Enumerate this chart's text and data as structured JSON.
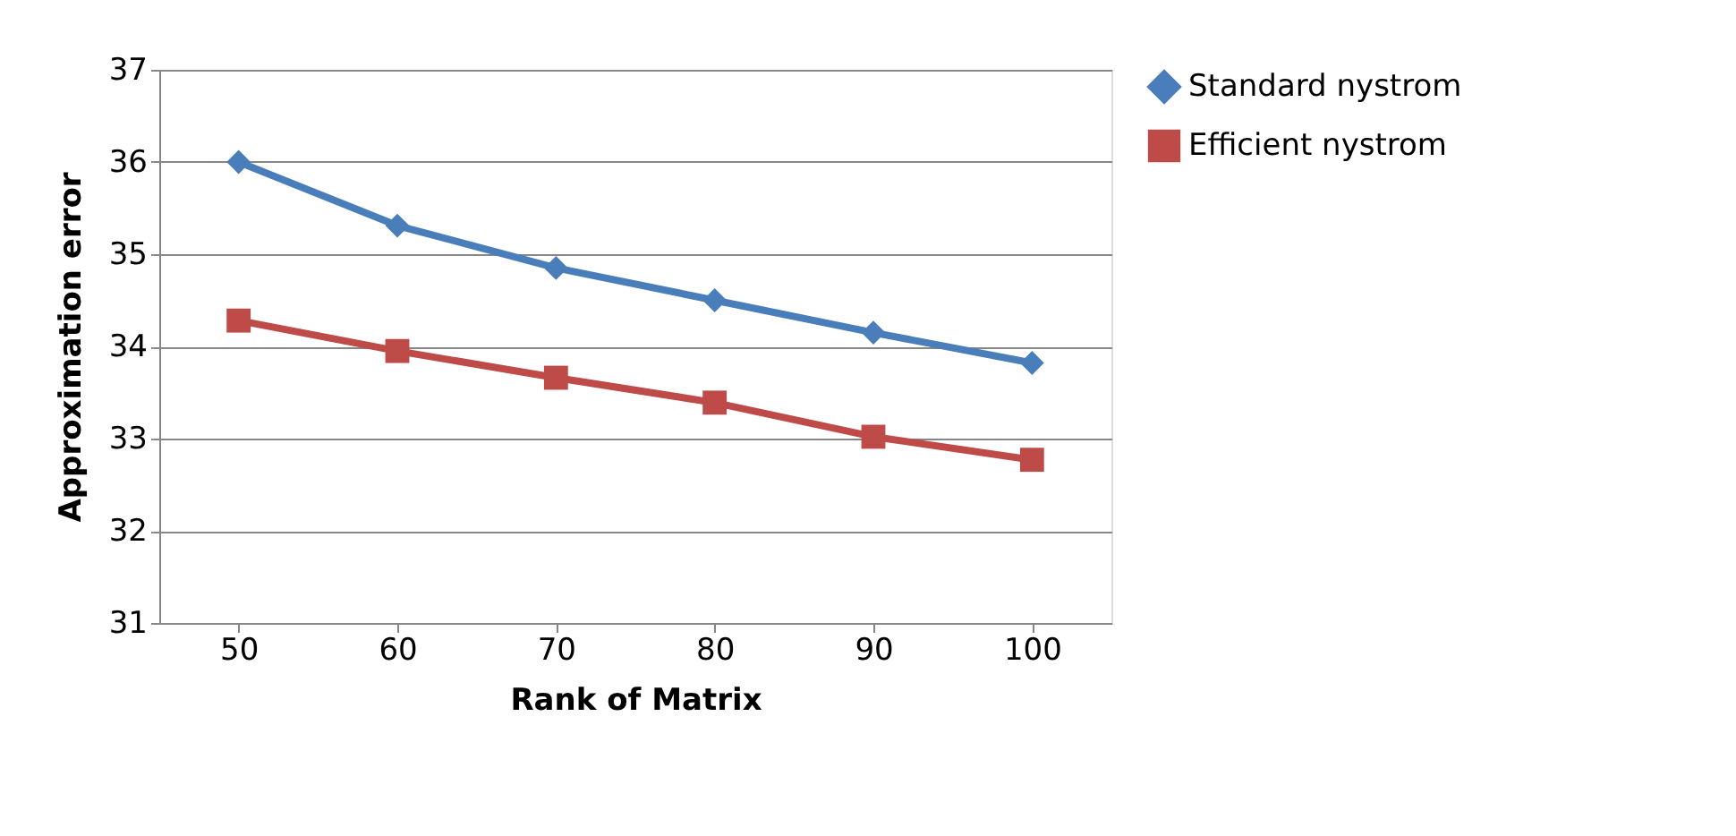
{
  "chart_data": {
    "type": "line",
    "xlabel": "Rank of Matrix",
    "ylabel": "Approximation error",
    "categories": [
      "50",
      "60",
      "70",
      "80",
      "90",
      "100"
    ],
    "series": [
      {
        "name": "Standard nystrom",
        "color": "#4a7ebb",
        "marker": "diamond",
        "values": [
          36.0,
          35.31,
          34.85,
          34.5,
          34.15,
          33.82
        ]
      },
      {
        "name": "Efficient nystrom",
        "color": "#be4b48",
        "marker": "square",
        "values": [
          34.28,
          33.95,
          33.66,
          33.39,
          33.02,
          32.77
        ]
      }
    ],
    "ylim": [
      31,
      37
    ],
    "yticks": [
      31,
      32,
      33,
      34,
      35,
      36,
      37
    ],
    "grid": "y",
    "legend": "right",
    "line_style": "solid"
  }
}
